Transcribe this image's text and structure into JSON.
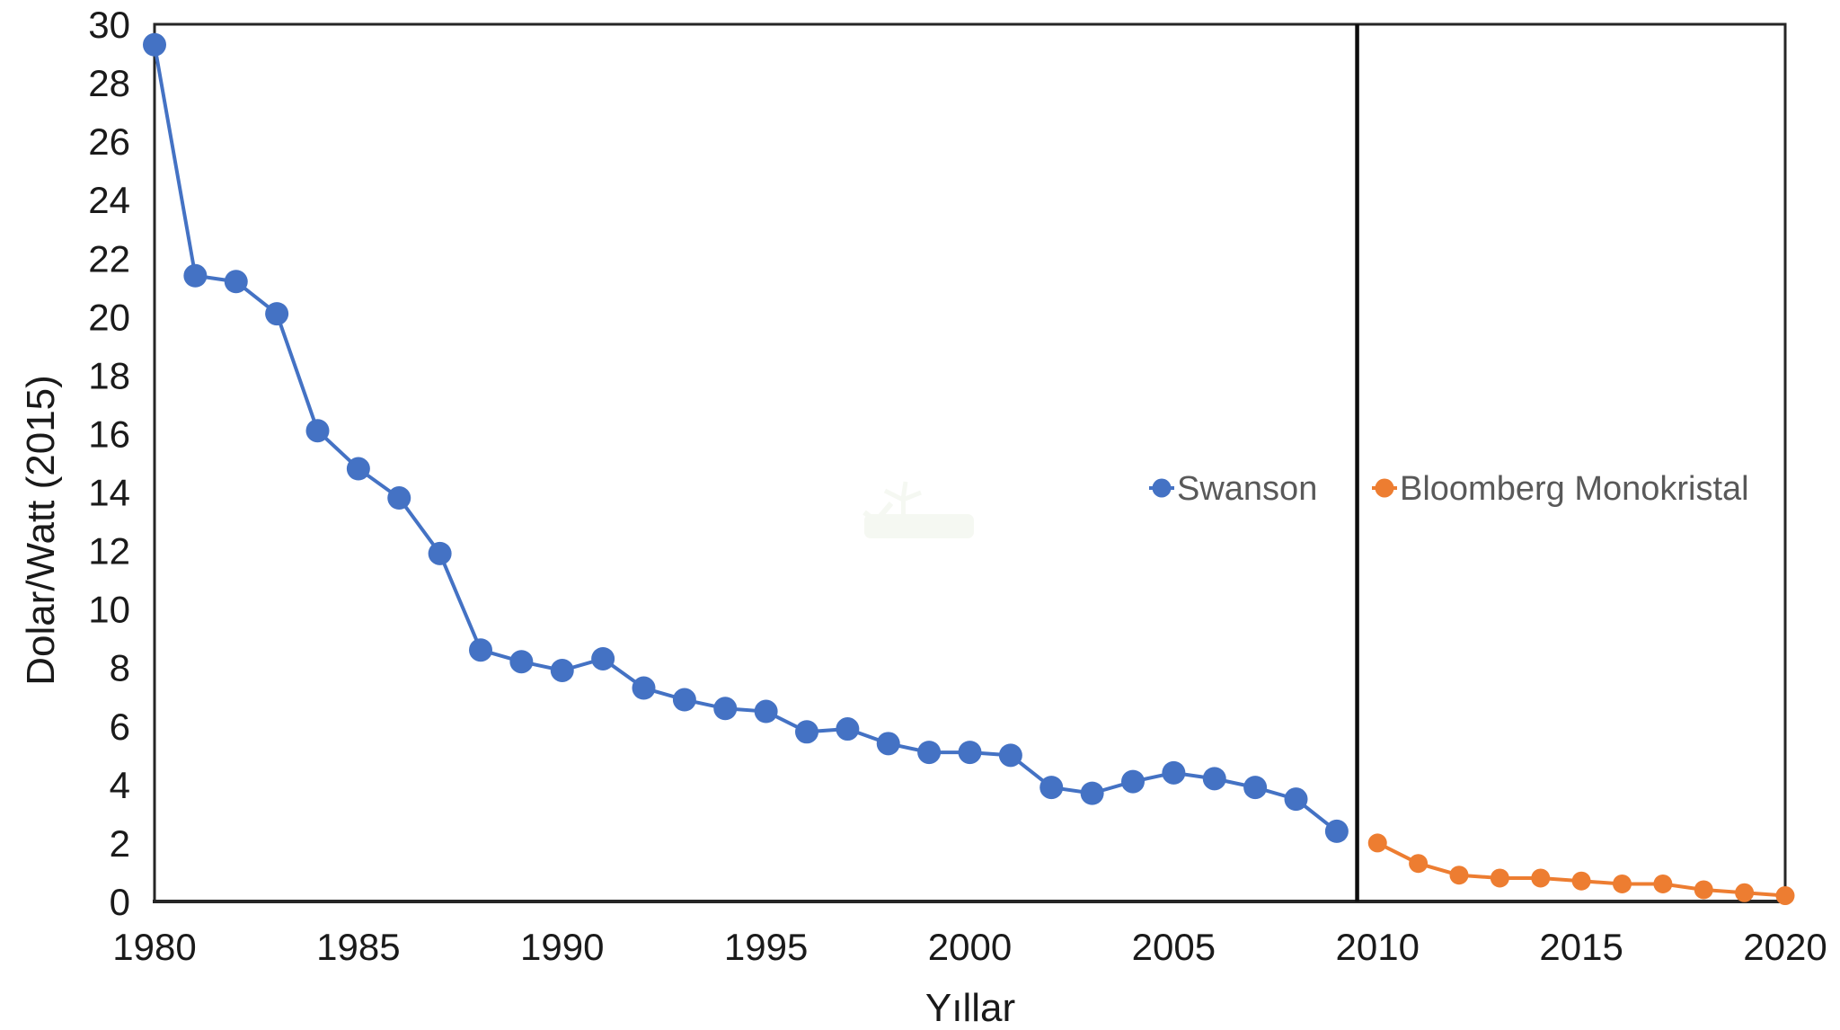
{
  "chart_data": {
    "type": "line",
    "title": "",
    "xlabel": "Yıllar",
    "ylabel": "Dolar/Watt (2015)",
    "xlim": [
      1980,
      2020
    ],
    "ylim": [
      0,
      30
    ],
    "x_ticks": [
      1980,
      1985,
      1990,
      1995,
      2000,
      2005,
      2010,
      2015,
      2020
    ],
    "y_ticks": [
      30,
      28,
      26,
      24,
      22,
      20,
      18,
      16,
      14,
      12,
      10,
      8,
      6,
      4,
      2,
      0
    ],
    "grid": false,
    "legend_position": "center-right-inside",
    "annotations": {
      "vertical_line_x": 2009.5
    },
    "series": [
      {
        "name": "Swanson",
        "color": "#4472C4",
        "x": [
          1980,
          1981,
          1982,
          1983,
          1984,
          1985,
          1986,
          1987,
          1988,
          1989,
          1990,
          1991,
          1992,
          1993,
          1994,
          1995,
          1996,
          1997,
          1998,
          1999,
          2000,
          2001,
          2002,
          2003,
          2004,
          2005,
          2006,
          2007,
          2008,
          2009
        ],
        "values": [
          29.3,
          21.4,
          21.2,
          20.1,
          16.1,
          14.8,
          13.8,
          11.9,
          8.6,
          8.2,
          7.9,
          8.3,
          7.3,
          6.9,
          6.6,
          6.5,
          5.8,
          5.9,
          5.4,
          5.1,
          5.1,
          5.0,
          3.9,
          3.7,
          4.1,
          4.4,
          4.2,
          3.9,
          3.5,
          2.4
        ]
      },
      {
        "name": "Bloomberg Monokristal",
        "color": "#ED7D31",
        "x": [
          2010,
          2011,
          2012,
          2013,
          2014,
          2015,
          2016,
          2017,
          2018,
          2019,
          2020
        ],
        "values": [
          2.0,
          1.3,
          0.9,
          0.8,
          0.8,
          0.7,
          0.6,
          0.6,
          0.4,
          0.3,
          0.2
        ]
      }
    ]
  },
  "figure": {
    "background": "#FFFFFF",
    "axis_color": "#262626",
    "tick_label_color": "#1A1A1A",
    "legend_text_color": "#595959",
    "divider_color": "#0D0D0D"
  }
}
